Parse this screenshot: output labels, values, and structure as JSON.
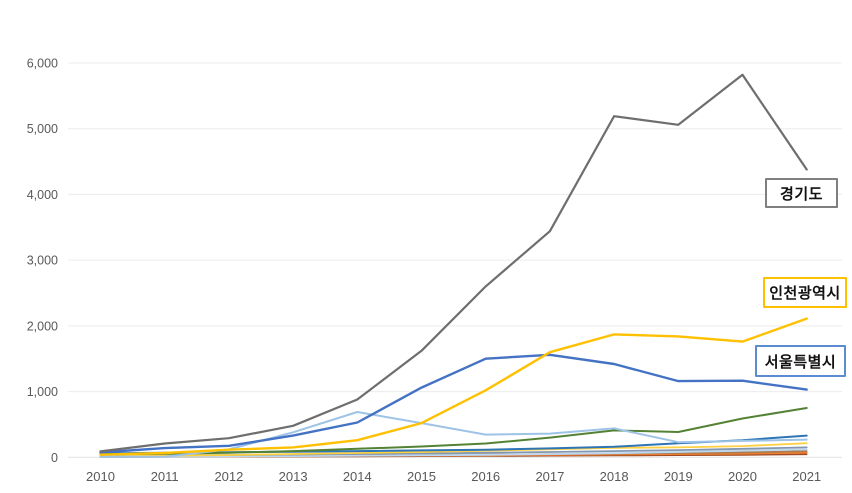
{
  "page": {
    "background_color": "#ffffff",
    "axis_label_color": "#595959",
    "gridline_color": "#ececec",
    "baseline_color": "#e2e2e2"
  },
  "chart_data": {
    "type": "line",
    "title": "",
    "xlabel": "",
    "ylabel": "",
    "legend": "none",
    "grid": "horizontal",
    "ylim": [
      0,
      6000
    ],
    "yticks": [
      0,
      1000,
      2000,
      3000,
      4000,
      5000,
      6000
    ],
    "ytick_labels": [
      "0",
      "1,000",
      "2,000",
      "3,000",
      "4,000",
      "5,000",
      "6,000"
    ],
    "x": [
      2010,
      2011,
      2012,
      2013,
      2014,
      2015,
      2016,
      2017,
      2018,
      2019,
      2020,
      2021
    ],
    "xtick_labels": [
      "2010",
      "2011",
      "2012",
      "2013",
      "2014",
      "2015",
      "2016",
      "2017",
      "2018",
      "2019",
      "2020",
      "2021"
    ],
    "series": [
      {
        "name": "unlabeled-dark-red",
        "color": "#9E4B22",
        "width": 1.6,
        "values": [
          5,
          7,
          9,
          11,
          14,
          17,
          20,
          24,
          28,
          32,
          37,
          45
        ]
      },
      {
        "name": "unlabeled-orange",
        "color": "#ED7D31",
        "width": 1.8,
        "values": [
          10,
          12,
          15,
          18,
          22,
          26,
          30,
          36,
          42,
          48,
          55,
          70
        ]
      },
      {
        "name": "unlabeled-brown",
        "color": "#A97C50",
        "width": 1.8,
        "values": [
          12,
          15,
          18,
          22,
          28,
          34,
          40,
          48,
          56,
          65,
          75,
          95
        ]
      },
      {
        "name": "unlabeled-pale-blue",
        "color": "#BDD7EE",
        "width": 1.8,
        "values": [
          8,
          10,
          14,
          18,
          24,
          30,
          38,
          48,
          62,
          80,
          100,
          120
        ]
      },
      {
        "name": "unlabeled-gray-blue",
        "color": "#8497B0",
        "width": 1.8,
        "values": [
          25,
          30,
          35,
          42,
          50,
          58,
          68,
          80,
          95,
          110,
          130,
          150
        ]
      },
      {
        "name": "unlabeled-gold",
        "color": "#FFD041",
        "width": 1.8,
        "values": [
          20,
          25,
          35,
          50,
          65,
          80,
          100,
          120,
          145,
          150,
          170,
          215
        ]
      },
      {
        "name": "unlabeled-steel-blue",
        "color": "#2E75B6",
        "width": 2.0,
        "values": [
          60,
          70,
          78,
          85,
          95,
          105,
          115,
          135,
          160,
          215,
          260,
          330
        ]
      },
      {
        "name": "unlabeled-dark-green",
        "color": "#548235",
        "width": 2.0,
        "values": [
          45,
          55,
          70,
          95,
          130,
          165,
          210,
          300,
          410,
          385,
          590,
          750
        ]
      },
      {
        "name": "unlabeled-light-blue",
        "color": "#9DC3E6",
        "width": 2.0,
        "values": [
          10,
          8,
          120,
          380,
          690,
          520,
          345,
          360,
          440,
          230,
          250,
          270
        ]
      },
      {
        "name": "서울특별시",
        "color": "#4472C4",
        "width": 2.4,
        "values": [
          75,
          140,
          175,
          330,
          530,
          1060,
          1500,
          1560,
          1420,
          1160,
          1165,
          1030
        ]
      },
      {
        "name": "인천광역시",
        "color": "#FFC000",
        "width": 2.4,
        "values": [
          40,
          65,
          115,
          150,
          260,
          520,
          1020,
          1600,
          1870,
          1840,
          1760,
          2110
        ]
      },
      {
        "name": "경기도",
        "color": "#6E6E6E",
        "width": 2.2,
        "values": [
          90,
          210,
          290,
          480,
          880,
          1620,
          2600,
          3440,
          5190,
          5060,
          5820,
          4380
        ]
      }
    ],
    "annotations": [
      {
        "text": "경기도",
        "series": "경기도",
        "border_color": "#7F7F7F"
      },
      {
        "text": "인천광역시",
        "series": "인천광역시",
        "border_color": "#FFC000"
      },
      {
        "text": "서울특별시",
        "series": "서울특별시",
        "border_color": "#5B8BD0"
      }
    ]
  }
}
